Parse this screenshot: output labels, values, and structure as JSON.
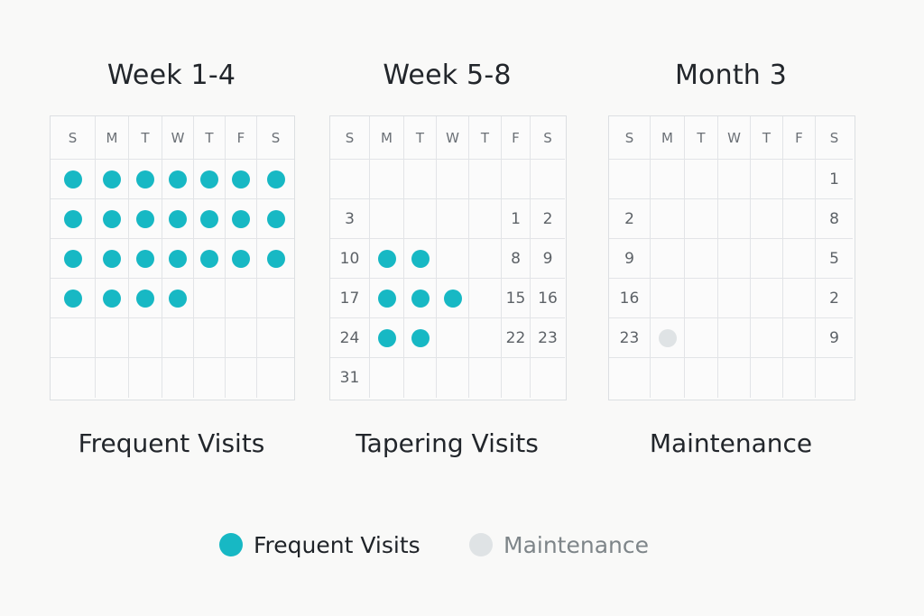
{
  "colors": {
    "frequent": "#17b8c4",
    "maintenance": "#dfe3e5",
    "legend_maintenance_text": "#7e8589"
  },
  "weekdays": [
    "S",
    "M",
    "T",
    "W",
    "T",
    "F",
    "S"
  ],
  "panels": [
    {
      "title": "Week 1-4",
      "caption": "Frequent Visits",
      "cells": [
        [
          {
            "dot": "frequent"
          },
          {
            "dot": "frequent"
          },
          {
            "dot": "frequent"
          },
          {
            "dot": "frequent"
          },
          {
            "dot": "frequent"
          },
          {
            "dot": "frequent"
          },
          {
            "dot": "frequent"
          }
        ],
        [
          {
            "dot": "frequent"
          },
          {
            "dot": "frequent"
          },
          {
            "dot": "frequent"
          },
          {
            "dot": "frequent"
          },
          {
            "dot": "frequent"
          },
          {
            "dot": "frequent"
          },
          {
            "dot": "frequent"
          }
        ],
        [
          {
            "dot": "frequent"
          },
          {
            "dot": "frequent"
          },
          {
            "dot": "frequent"
          },
          {
            "dot": "frequent"
          },
          {
            "dot": "frequent"
          },
          {
            "dot": "frequent"
          },
          {
            "dot": "frequent"
          }
        ],
        [
          {
            "dot": "frequent"
          },
          {
            "dot": "frequent"
          },
          {
            "dot": "frequent"
          },
          {
            "dot": "frequent"
          },
          {},
          {},
          {}
        ],
        [
          {},
          {},
          {},
          {},
          {},
          {},
          {}
        ],
        [
          {},
          {},
          {},
          {},
          {},
          {},
          {}
        ]
      ]
    },
    {
      "title": "Week 5-8",
      "caption": "Tapering Visits",
      "cells": [
        [
          {},
          {},
          {},
          {},
          {},
          {},
          {}
        ],
        [
          {
            "text": "3"
          },
          {},
          {},
          {},
          {},
          {
            "text": "1"
          },
          {
            "text": "2"
          }
        ],
        [
          {
            "text": "10"
          },
          {
            "dot": "frequent"
          },
          {
            "dot": "frequent"
          },
          {},
          {},
          {
            "text": "8"
          },
          {
            "text": "9"
          }
        ],
        [
          {
            "text": "17"
          },
          {
            "dot": "frequent"
          },
          {
            "dot": "frequent"
          },
          {
            "dot": "frequent"
          },
          {},
          {
            "text": "15"
          },
          {
            "text": "16"
          }
        ],
        [
          {
            "text": "24"
          },
          {
            "dot": "frequent"
          },
          {
            "dot": "frequent"
          },
          {},
          {},
          {
            "text": "22"
          },
          {
            "text": "23"
          }
        ],
        [
          {
            "text": "31"
          },
          {},
          {},
          {},
          {},
          {},
          {}
        ]
      ]
    },
    {
      "title": "Month 3",
      "caption": "Maintenance",
      "cells": [
        [
          {},
          {},
          {},
          {},
          {},
          {},
          {
            "text": "1"
          }
        ],
        [
          {
            "text": "2"
          },
          {},
          {},
          {},
          {},
          {},
          {
            "text": "8"
          }
        ],
        [
          {
            "text": "9"
          },
          {},
          {},
          {},
          {},
          {},
          {
            "text": "5"
          }
        ],
        [
          {
            "text": "16"
          },
          {},
          {},
          {},
          {},
          {},
          {
            "text": "2"
          }
        ],
        [
          {
            "text": "23"
          },
          {
            "dot": "maintenance"
          },
          {},
          {},
          {},
          {},
          {
            "text": "9"
          }
        ],
        [
          {},
          {},
          {},
          {},
          {},
          {},
          {}
        ]
      ]
    }
  ],
  "legend": [
    {
      "label": "Frequent Visits",
      "color_key": "frequent"
    },
    {
      "label": "Maintenance",
      "color_key": "maintenance"
    }
  ]
}
